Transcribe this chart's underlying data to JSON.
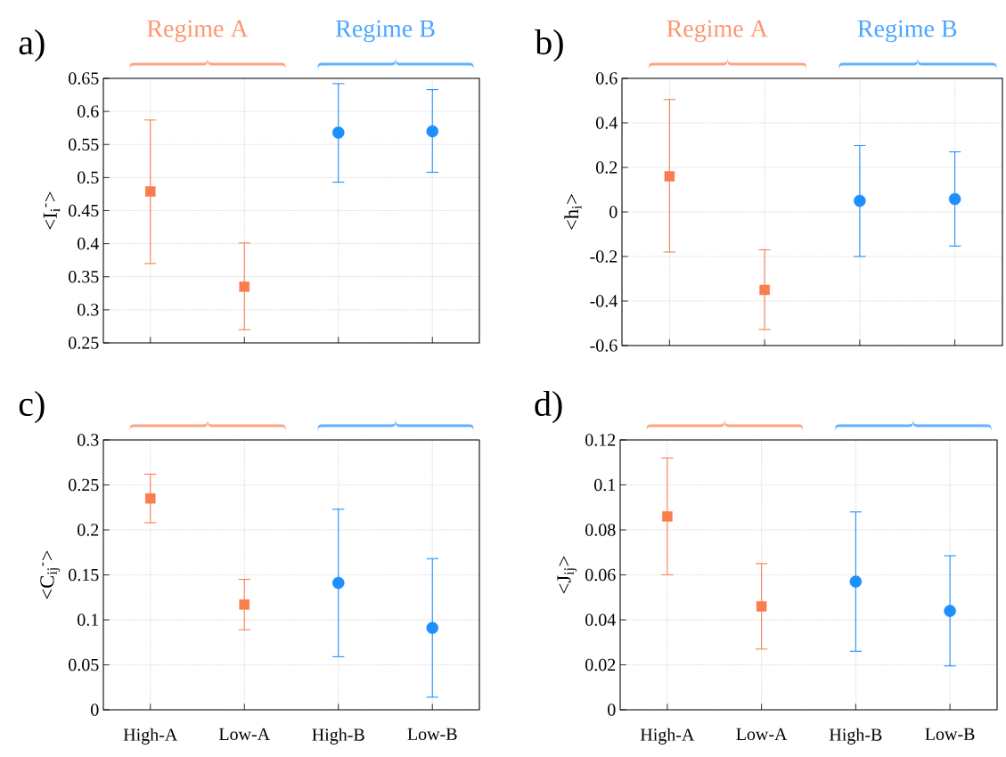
{
  "chart_data": [
    {
      "type": "scatter",
      "title": "a)",
      "ylabel": "<I$_{i}$$^{-}$>",
      "categories": [
        null,
        null,
        null,
        null
      ],
      "annotations": [
        "Regime A",
        "Regime B"
      ],
      "ylim": [
        0.25,
        0.65
      ],
      "yticks": [
        0.25,
        0.3,
        0.35,
        0.4,
        0.45,
        0.5,
        0.55,
        0.6,
        0.65
      ],
      "grid": true,
      "tick_labels": "y",
      "series": [
        {
          "color": "#fa7d4f",
          "marker": "square",
          "values": [
            0.479,
            0.335,
            null,
            null
          ],
          "errors": [
            [
              0.37,
              0.587
            ],
            [
              0.27,
              0.401
            ],
            null,
            null
          ]
        },
        {
          "color": "#1e8fff",
          "marker": "circle",
          "values": [
            null,
            null,
            0.568,
            0.57
          ],
          "errors": [
            null,
            null,
            [
              0.493,
              0.642
            ],
            [
              0.508,
              0.633
            ]
          ]
        }
      ]
    },
    {
      "type": "scatter",
      "title": "b)",
      "ylabel": "<h$_{i}$>",
      "categories": [
        null,
        null,
        null,
        null
      ],
      "annotations": [
        "Regime A",
        "Regime B"
      ],
      "ylim": [
        -0.6,
        0.6
      ],
      "yticks": [
        -0.6,
        -0.4,
        -0.2,
        0,
        0.2,
        0.4,
        0.6
      ],
      "grid": true,
      "tick_labels": "y",
      "series": [
        {
          "color": "#fa7d4f",
          "marker": "square",
          "values": [
            0.16,
            -0.35,
            null,
            null
          ],
          "errors": [
            [
              -0.18,
              0.505
            ],
            [
              -0.528,
              -0.17
            ],
            null,
            null
          ]
        },
        {
          "color": "#1e8fff",
          "marker": "circle",
          "values": [
            null,
            null,
            0.05,
            0.058
          ],
          "errors": [
            null,
            null,
            [
              -0.2,
              0.298
            ],
            [
              -0.153,
              0.27
            ]
          ]
        }
      ]
    },
    {
      "type": "scatter",
      "title": "c)",
      "ylabel": "<C$_{ij}$$^{-}$>",
      "categories": [
        "High-A",
        "Low-A",
        "High-B",
        "Low-B"
      ],
      "ylim": [
        0,
        0.3
      ],
      "yticks": [
        0,
        0.05,
        0.1,
        0.15,
        0.2,
        0.25,
        0.3
      ],
      "grid": true,
      "series": [
        {
          "color": "#fa7d4f",
          "marker": "square",
          "values": [
            0.235,
            0.117,
            null,
            null
          ],
          "errors": [
            [
              0.208,
              0.262
            ],
            [
              0.089,
              0.145
            ],
            null,
            null
          ]
        },
        {
          "color": "#1e8fff",
          "marker": "circle",
          "values": [
            null,
            null,
            0.141,
            0.091
          ],
          "errors": [
            null,
            null,
            [
              0.059,
              0.223
            ],
            [
              0.014,
              0.168
            ]
          ]
        }
      ]
    },
    {
      "type": "scatter",
      "title": "d)",
      "ylabel": "<J$_{ij}$>",
      "categories": [
        "High-A",
        "Low-A",
        "High-B",
        "Low-B"
      ],
      "ylim": [
        0,
        0.12
      ],
      "yticks": [
        0,
        0.02,
        0.04,
        0.06,
        0.08,
        0.1,
        0.12
      ],
      "grid": true,
      "series": [
        {
          "color": "#fa7d4f",
          "marker": "square",
          "values": [
            0.086,
            0.046,
            null,
            null
          ],
          "errors": [
            [
              0.06,
              0.112
            ],
            [
              0.027,
              0.065
            ],
            null,
            null
          ]
        },
        {
          "color": "#1e8fff",
          "marker": "circle",
          "values": [
            null,
            null,
            0.057,
            0.044
          ],
          "errors": [
            null,
            null,
            [
              0.026,
              0.088
            ],
            [
              0.0195,
              0.0685
            ]
          ]
        }
      ]
    }
  ]
}
